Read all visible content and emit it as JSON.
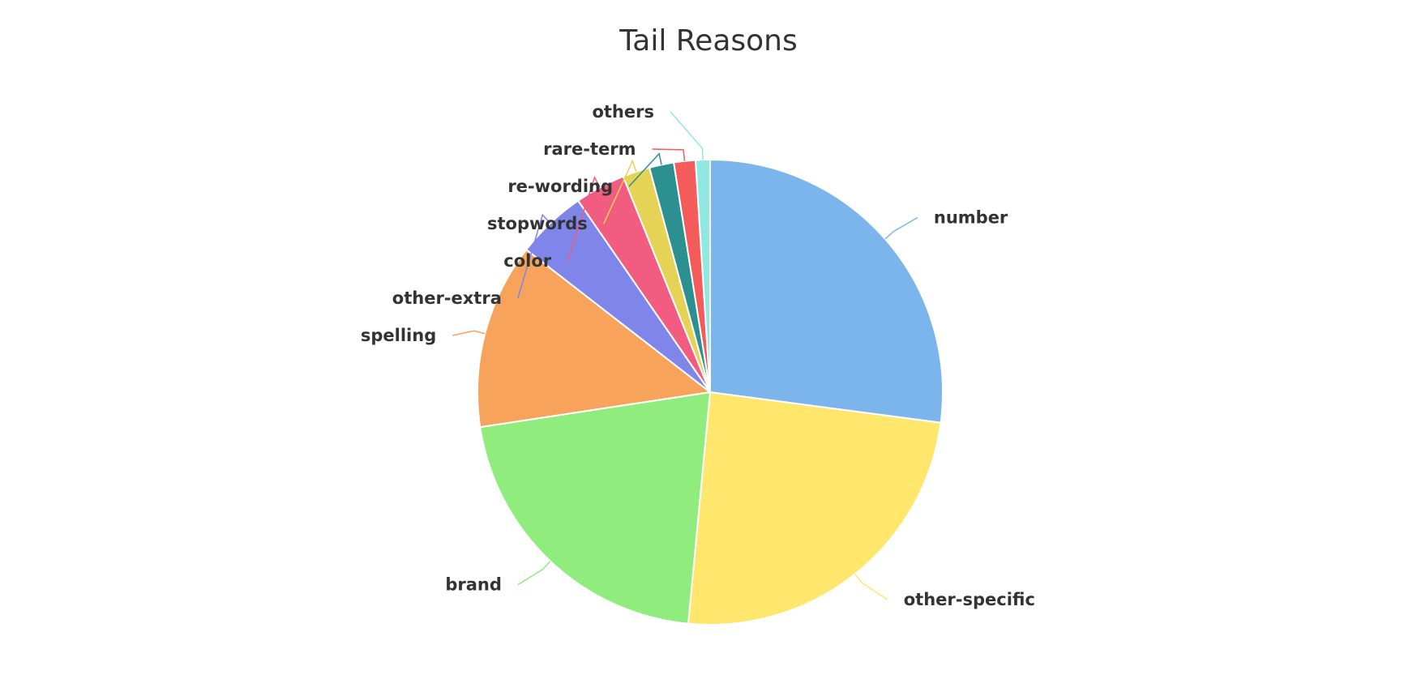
{
  "chart_data": {
    "type": "pie",
    "title": "Tail Reasons",
    "slices": [
      {
        "name": "number",
        "value": 27.1,
        "color": "#7cb5ec"
      },
      {
        "name": "other-specific",
        "value": 24.4,
        "color": "#ffe66d"
      },
      {
        "name": "brand",
        "value": 21.1,
        "color": "#90ed7d"
      },
      {
        "name": "spelling",
        "value": 12.9,
        "color": "#f7a35c"
      },
      {
        "name": "other-extra",
        "value": 4.9,
        "color": "#8085e9"
      },
      {
        "name": "color",
        "value": 3.5,
        "color": "#f15c80"
      },
      {
        "name": "stopwords",
        "value": 1.9,
        "color": "#e4d354"
      },
      {
        "name": "re-wording",
        "value": 1.7,
        "color": "#2b908f"
      },
      {
        "name": "rare-term",
        "value": 1.5,
        "color": "#f45b5b"
      },
      {
        "name": "others",
        "value": 1.0,
        "color": "#91e8e1"
      }
    ],
    "start_angle": "12 o'clock",
    "direction": "clockwise",
    "legend": "none",
    "data_labels": "outside with connector lines"
  }
}
